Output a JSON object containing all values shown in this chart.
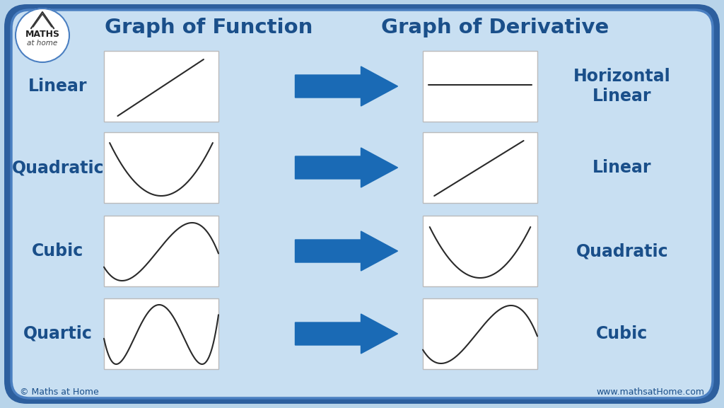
{
  "bg_outer": "#b8d4ea",
  "bg_inner": "#c8dff2",
  "border_outer": "#2d5f9e",
  "border_inner": "#4a7fc1",
  "box_bg": "white",
  "box_edge": "#bbbbbb",
  "arrow_color": "#1a6ab5",
  "text_color": "#1a4f8a",
  "curve_color": "#2a2a2a",
  "title_left": "Graph of Function",
  "title_right": "Graph of Derivative",
  "row_labels": [
    "Linear",
    "Quadratic",
    "Cubic",
    "Quartic"
  ],
  "deriv_labels": [
    "Horizontal\nLinear",
    "Linear",
    "Quadratic",
    "Cubic"
  ],
  "footer_left": "© Maths at Home",
  "footer_right": "www.mathsatHome.com",
  "logo_text1": "MATHS",
  "logo_text2": "at home",
  "figw": 10.24,
  "figh": 5.77,
  "dpi": 100
}
